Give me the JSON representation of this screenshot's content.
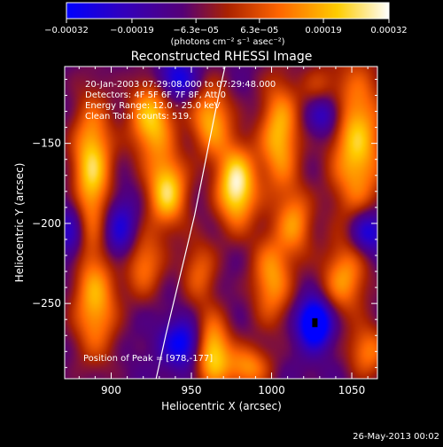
{
  "chart_data": {
    "type": "heatmap",
    "title": "Reconstructed RHESSI Image",
    "xlabel": "Heliocentric X (arcsec)",
    "ylabel": "Heliocentric Y (arcsec)",
    "xlim": [
      871,
      1066
    ],
    "ylim": [
      -297,
      -102
    ],
    "xticks": [
      900,
      950,
      1000,
      1050
    ],
    "xtick_labels": [
      "900",
      "950",
      "1000",
      "1050"
    ],
    "yticks": [
      -150,
      -200,
      -250
    ],
    "ytick_labels": [
      "−150",
      "−200",
      "−250"
    ],
    "colorbar": {
      "ticks": [
        -0.00032,
        -0.00019,
        -6.3e-05,
        6.3e-05,
        0.00019,
        0.00032
      ],
      "tick_labels": [
        "−0.00032",
        "−0.00019",
        "−6.3e−05",
        "6.3e−05",
        "0.00019",
        "0.00032"
      ],
      "units": "(photons cm⁻² s⁻¹ asec⁻²)",
      "colors": [
        "#0000ff",
        "#3300bb",
        "#550077",
        "#aa2200",
        "#ff6600",
        "#ffcc00",
        "#ffffff"
      ]
    },
    "annotations": [
      "20-Jan-2003 07:29:08.000 to 07:29:48.000",
      "Detectors: 4F 5F 6F 7F 8F, Att 0",
      "Energy Range: 12.0 - 25.0 keV",
      "Clean    Total counts: 519.",
      "Position of Peak = [978,-177]"
    ],
    "timestamp": "26-May-2013 00:02",
    "peak": [
      978,
      -177
    ],
    "peak_value": 0.00032,
    "min_marker": [
      1027,
      -262
    ],
    "limb_curve": [
      [
        928,
        -297
      ],
      [
        934,
        -270
      ],
      [
        940,
        -245
      ],
      [
        946,
        -220
      ],
      [
        952,
        -195
      ],
      [
        957,
        -170
      ],
      [
        962,
        -145
      ],
      [
        967,
        -120
      ],
      [
        971,
        -102
      ]
    ],
    "blobs": [
      {
        "x": 978,
        "y": -177,
        "v": 1.0,
        "sx": 9,
        "sy": 18
      },
      {
        "x": 888,
        "y": -165,
        "v": 0.85,
        "sx": 9,
        "sy": 30
      },
      {
        "x": 925,
        "y": -135,
        "v": 0.8,
        "sx": 10,
        "sy": 18
      },
      {
        "x": 935,
        "y": -180,
        "v": 0.85,
        "sx": 9,
        "sy": 16
      },
      {
        "x": 962,
        "y": -135,
        "v": 0.7,
        "sx": 9,
        "sy": 16
      },
      {
        "x": 1005,
        "y": -145,
        "v": 0.75,
        "sx": 9,
        "sy": 25
      },
      {
        "x": 1053,
        "y": -150,
        "v": 0.8,
        "sx": 12,
        "sy": 35
      },
      {
        "x": 1000,
        "y": -235,
        "v": 0.65,
        "sx": 9,
        "sy": 20
      },
      {
        "x": 1015,
        "y": -200,
        "v": 0.55,
        "sx": 8,
        "sy": 15
      },
      {
        "x": 890,
        "y": -250,
        "v": 0.7,
        "sx": 10,
        "sy": 25
      },
      {
        "x": 920,
        "y": -225,
        "v": 0.55,
        "sx": 9,
        "sy": 15
      },
      {
        "x": 963,
        "y": -280,
        "v": 0.85,
        "sx": 8,
        "sy": 16
      },
      {
        "x": 1045,
        "y": -235,
        "v": 0.6,
        "sx": 10,
        "sy": 16
      },
      {
        "x": 985,
        "y": -290,
        "v": 0.6,
        "sx": 10,
        "sy": 10
      },
      {
        "x": 1060,
        "y": -280,
        "v": 0.55,
        "sx": 9,
        "sy": 12
      },
      {
        "x": 955,
        "y": -230,
        "v": 0.45,
        "sx": 8,
        "sy": 15
      },
      {
        "x": 1030,
        "y": -120,
        "v": 0.45,
        "sx": 8,
        "sy": 12
      },
      {
        "x": 1033,
        "y": -130,
        "v": -0.7,
        "sx": 8,
        "sy": 10
      },
      {
        "x": 1027,
        "y": -262,
        "v": -1.0,
        "sx": 7,
        "sy": 10
      },
      {
        "x": 905,
        "y": -205,
        "v": -0.5,
        "sx": 8,
        "sy": 15
      },
      {
        "x": 945,
        "y": -275,
        "v": -0.6,
        "sx": 9,
        "sy": 10
      },
      {
        "x": 940,
        "y": -110,
        "v": -0.55,
        "sx": 9,
        "sy": 9
      },
      {
        "x": 1060,
        "y": -205,
        "v": -0.6,
        "sx": 8,
        "sy": 10
      },
      {
        "x": 875,
        "y": -205,
        "v": -0.4,
        "sx": 6,
        "sy": 15
      }
    ]
  }
}
